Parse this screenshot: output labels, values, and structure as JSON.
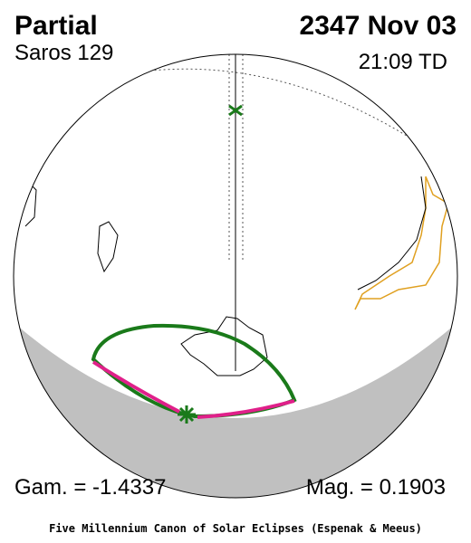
{
  "header": {
    "title": "Partial",
    "date": "2347 Nov 03",
    "saros": "Saros 129",
    "time": "21:09 TD"
  },
  "footer": {
    "gamma": "Gam. = -1.4337",
    "magnitude": "Mag. = 0.1903",
    "credit": "Five Millennium Canon of Solar Eclipses (Espenak & Meeus)"
  }
}
